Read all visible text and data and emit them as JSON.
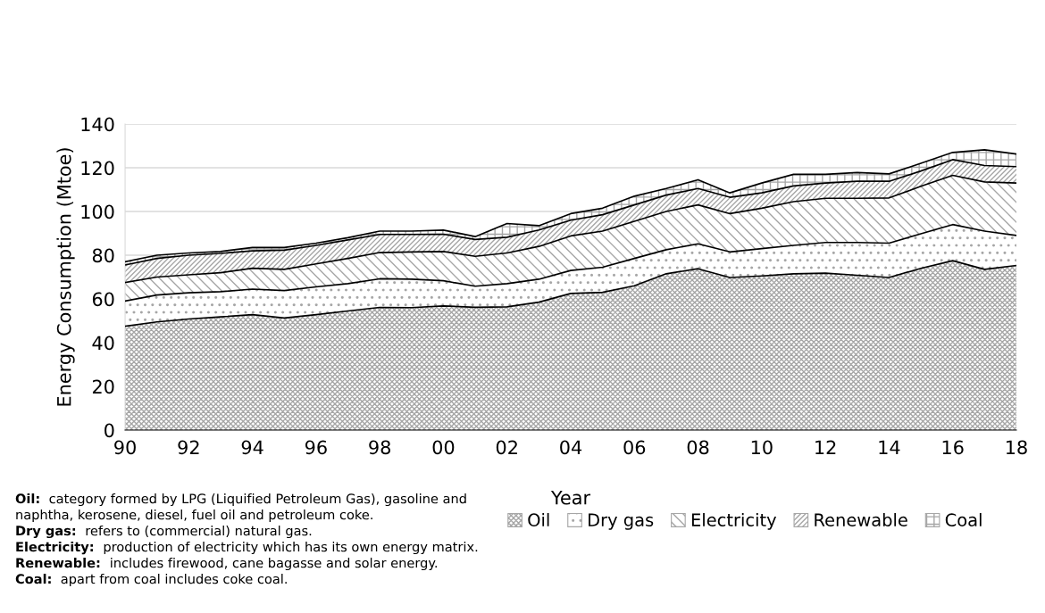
{
  "chart_data": {
    "type": "area",
    "stacked": true,
    "ylabel": "Energy Consumption (Mtoe)",
    "xlabel": "Year",
    "x": [
      1990,
      1991,
      1992,
      1993,
      1994,
      1995,
      1996,
      1997,
      1998,
      1999,
      2000,
      2001,
      2002,
      2003,
      2004,
      2005,
      2006,
      2007,
      2008,
      2009,
      2010,
      2011,
      2012,
      2013,
      2014,
      2015,
      2016,
      2017,
      2018
    ],
    "series": [
      {
        "name": "Oil",
        "color": "#a6a6a6",
        "values": [
          47.5,
          49.5,
          50.8,
          51.8,
          52.8,
          51.3,
          52.8,
          54.5,
          56.1,
          56.0,
          56.8,
          56.2,
          56.4,
          58.5,
          62.5,
          63.0,
          66.0,
          71.5,
          73.8,
          69.8,
          70.5,
          71.5,
          71.8,
          70.8,
          69.8,
          74.0,
          77.5,
          73.5,
          75.3
        ]
      },
      {
        "name": "Dry gas",
        "color": "#a6a6a6",
        "values": [
          11.5,
          12.3,
          12.0,
          11.5,
          11.7,
          12.5,
          12.7,
          12.5,
          13.1,
          13.0,
          11.5,
          9.6,
          10.6,
          10.5,
          10.5,
          11.5,
          12.5,
          11.0,
          11.4,
          11.7,
          12.5,
          13.0,
          14.0,
          15.0,
          15.7,
          15.8,
          16.5,
          17.5,
          13.7
        ]
      },
      {
        "name": "Electricity",
        "color": "#a6a6a6",
        "values": [
          8.5,
          8.2,
          8.2,
          8.7,
          9.5,
          9.7,
          10.5,
          11.5,
          12.0,
          12.5,
          13.4,
          13.7,
          14.0,
          15.0,
          15.8,
          16.5,
          17.0,
          17.5,
          17.8,
          17.5,
          18.5,
          20.0,
          20.2,
          20.2,
          20.7,
          21.7,
          22.5,
          22.5,
          24.0
        ]
      },
      {
        "name": "Renewable",
        "color": "#a6a6a6",
        "values": [
          8.0,
          8.5,
          9.0,
          8.8,
          8.0,
          8.8,
          8.5,
          8.5,
          8.3,
          8.0,
          7.9,
          7.7,
          7.2,
          7.5,
          7.2,
          7.5,
          7.5,
          7.5,
          7.5,
          7.5,
          7.0,
          7.2,
          7.0,
          7.8,
          7.6,
          7.0,
          7.2,
          7.5,
          7.5
        ]
      },
      {
        "name": "Coal",
        "color": "#a6a6a6",
        "values": [
          1.5,
          1.5,
          1.0,
          0.9,
          1.5,
          1.2,
          1.0,
          1.0,
          1.5,
          1.5,
          1.9,
          1.3,
          6.3,
          2.0,
          3.0,
          3.0,
          4.0,
          3.0,
          4.0,
          2.0,
          4.5,
          5.3,
          4.0,
          4.0,
          3.4,
          3.5,
          3.3,
          7.2,
          5.8
        ]
      }
    ],
    "xlim": [
      1990,
      2018
    ],
    "xticks": [
      {
        "value": 1990,
        "label": "90"
      },
      {
        "value": 1992,
        "label": "92"
      },
      {
        "value": 1994,
        "label": "94"
      },
      {
        "value": 1996,
        "label": "96"
      },
      {
        "value": 1998,
        "label": "98"
      },
      {
        "value": 2000,
        "label": "00"
      },
      {
        "value": 2002,
        "label": "02"
      },
      {
        "value": 2004,
        "label": "04"
      },
      {
        "value": 2006,
        "label": "06"
      },
      {
        "value": 2008,
        "label": "08"
      },
      {
        "value": 2010,
        "label": "10"
      },
      {
        "value": 2012,
        "label": "12"
      },
      {
        "value": 2014,
        "label": "14"
      },
      {
        "value": 2016,
        "label": "16"
      },
      {
        "value": 2018,
        "label": "18"
      }
    ],
    "ylim": [
      0,
      140
    ],
    "yticks": [
      0,
      20,
      40,
      60,
      80,
      100,
      120,
      140
    ],
    "grid": "y",
    "legend": "bottom right",
    "annotations": [
      "Oil: category formed by LPG (Liquified Petroleum Gas), gasoline and naphtha, kerosene, diesel, fuel oil and petroleum coke.",
      "Dry gas: refers to (commercial) natural gas.",
      "Electricity: production of electricity which has its own energy matrix.",
      "Renewable: includes firewood, cane bagasse and solar energy.",
      "Coal: apart from coal includes coke coal."
    ]
  }
}
